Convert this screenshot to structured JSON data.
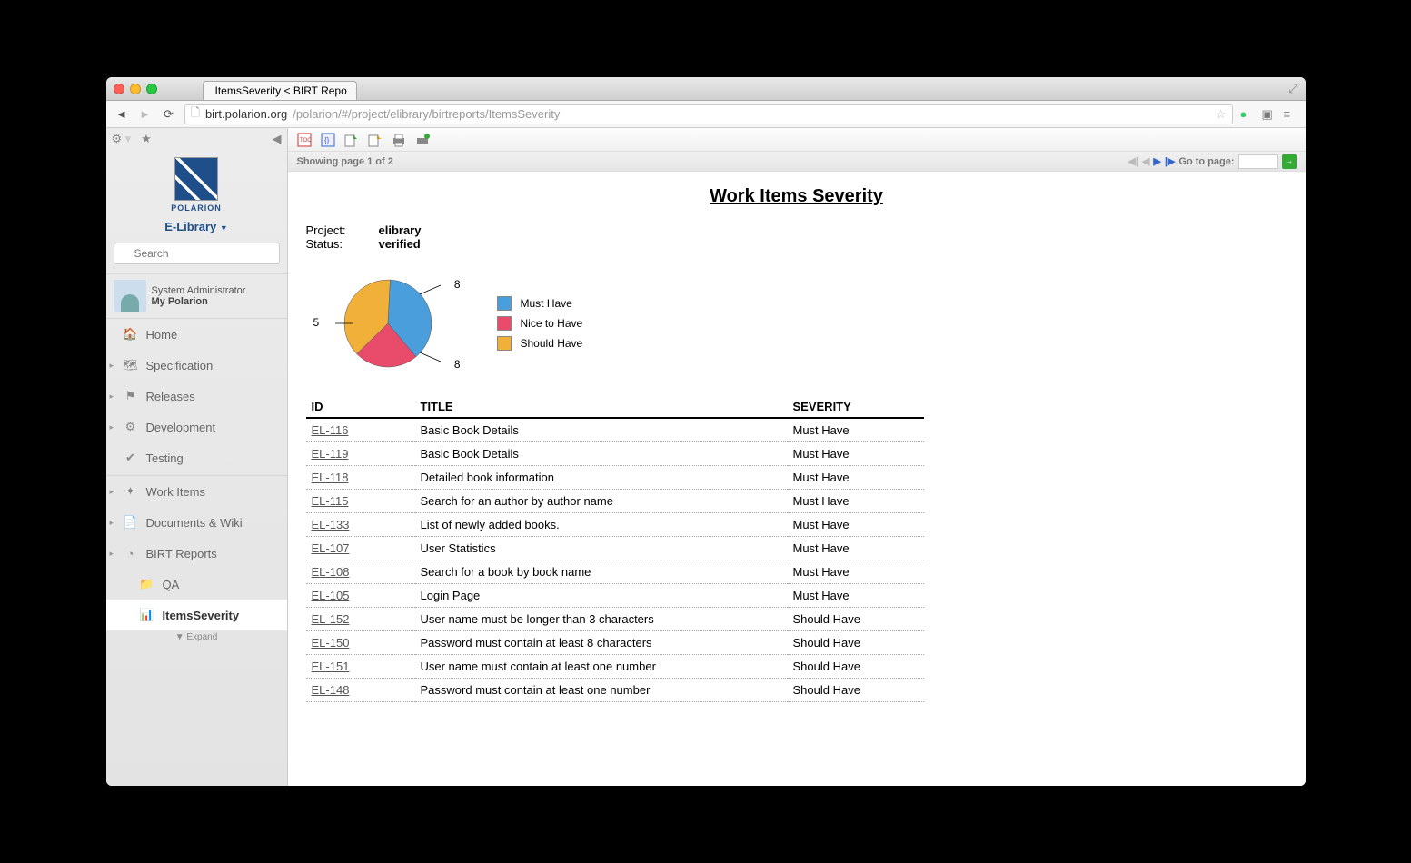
{
  "browser": {
    "tab_title": "ItemsSeverity < BIRT Repo",
    "url_host": "birt.polarion.org",
    "url_path": "/polarion/#/project/elibrary/birtreports/ItemsSeverity"
  },
  "sidebar": {
    "logo_text": "POLARION",
    "project_name": "E-Library",
    "search_placeholder": "Search",
    "user_role": "System Administrator",
    "user_link": "My Polarion",
    "nav": [
      {
        "label": "Home",
        "icon": "home"
      },
      {
        "label": "Specification",
        "icon": "spec",
        "expandable": true
      },
      {
        "label": "Releases",
        "icon": "flag",
        "expandable": true
      },
      {
        "label": "Development",
        "icon": "gear",
        "expandable": true
      },
      {
        "label": "Testing",
        "icon": "check"
      }
    ],
    "nav2": [
      {
        "label": "Work Items",
        "icon": "puzzle",
        "expandable": true
      },
      {
        "label": "Documents & Wiki",
        "icon": "docs",
        "expandable": true
      },
      {
        "label": "BIRT Reports",
        "icon": "pie",
        "expandable": true,
        "expanded": true
      }
    ],
    "birt_children": [
      {
        "label": "QA",
        "icon": "folder"
      },
      {
        "label": "ItemsSeverity",
        "icon": "report",
        "active": true
      }
    ],
    "expand_label": "Expand"
  },
  "pager": {
    "showing": "Showing page  1  of  2",
    "goto_label": "Go to page:"
  },
  "report": {
    "title": "Work Items Severity",
    "meta": [
      {
        "k": "Project:",
        "v": "elibrary"
      },
      {
        "k": "Status:",
        "v": "verified"
      }
    ],
    "pie": {
      "slices": [
        {
          "label": "Must Have",
          "value": 8,
          "color": "#4a9edb"
        },
        {
          "label": "Nice to Have",
          "value": 5,
          "color": "#e94b6a"
        },
        {
          "label": "Should Have",
          "value": 8,
          "color": "#f0b03a"
        }
      ],
      "label_8_top": "8",
      "label_5": "5",
      "label_8_bot": "8",
      "stroke": "#555",
      "radius": 48
    },
    "columns": [
      "ID",
      "TITLE",
      "SEVERITY"
    ],
    "rows": [
      {
        "id": "EL-116",
        "title": "Basic Book Details",
        "sev": "Must Have"
      },
      {
        "id": "EL-119",
        "title": "Basic Book Details",
        "sev": "Must Have"
      },
      {
        "id": "EL-118",
        "title": "Detailed book information",
        "sev": "Must Have"
      },
      {
        "id": "EL-115",
        "title": "Search for an author by author name",
        "sev": "Must Have"
      },
      {
        "id": "EL-133",
        "title": "List of newly added books.",
        "sev": "Must Have"
      },
      {
        "id": "EL-107",
        "title": "User Statistics",
        "sev": "Must Have"
      },
      {
        "id": "EL-108",
        "title": "Search for a book by book name",
        "sev": "Must Have"
      },
      {
        "id": "EL-105",
        "title": "Login Page",
        "sev": "Must Have"
      },
      {
        "id": "EL-152",
        "title": "User name must be longer than 3 characters",
        "sev": "Should Have"
      },
      {
        "id": "EL-150",
        "title": "Password must contain at least 8 characters",
        "sev": "Should Have"
      },
      {
        "id": "EL-151",
        "title": "User name must contain at least one number",
        "sev": "Should Have"
      },
      {
        "id": "EL-148",
        "title": "Password must contain at least one number",
        "sev": "Should Have"
      }
    ]
  }
}
